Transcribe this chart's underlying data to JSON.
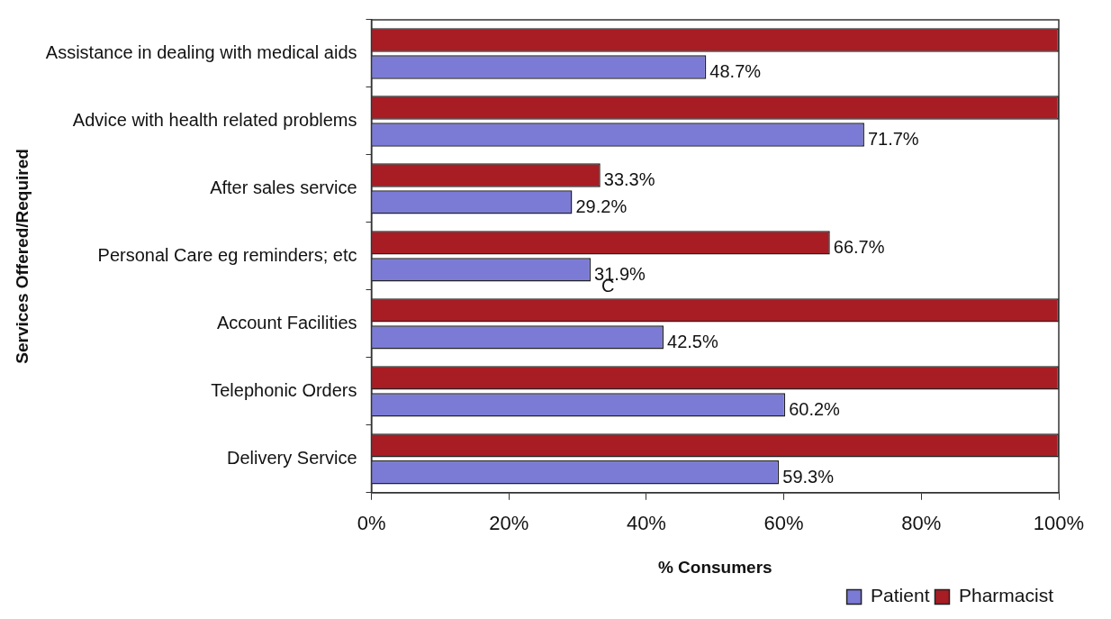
{
  "chart_data": {
    "type": "bar",
    "orientation": "horizontal",
    "xlabel": "% Consumers",
    "ylabel": "Services Offered/Required",
    "categories": [
      "Assistance in dealing with medical aids",
      "Advice with health related problems",
      "After sales service",
      "Personal Care eg reminders; etc",
      "Account Facilities",
      "Telephonic Orders",
      "Delivery Service"
    ],
    "series": [
      {
        "name": "Patient",
        "color": "#7b7bd6",
        "values": [
          48.7,
          71.7,
          29.2,
          31.9,
          42.5,
          60.2,
          59.3
        ],
        "value_labels": [
          "48.7%",
          "71.7%",
          "29.2%",
          "31.9%",
          "42.5%",
          "60.2%",
          "59.3%"
        ]
      },
      {
        "name": "Pharmacist",
        "color": "#a81c24",
        "values": [
          100,
          100,
          33.3,
          66.7,
          100,
          100,
          100
        ],
        "value_labels": [
          null,
          null,
          "33.3%",
          "66.7%",
          null,
          null,
          null
        ]
      }
    ],
    "xlim": [
      0,
      100
    ],
    "xticks": [
      {
        "value": 0,
        "label": "0%"
      },
      {
        "value": 20,
        "label": "20%"
      },
      {
        "value": 40,
        "label": "40%"
      },
      {
        "value": 60,
        "label": "60%"
      },
      {
        "value": 80,
        "label": "80%"
      },
      {
        "value": 100,
        "label": "100%"
      }
    ],
    "annotations": [
      {
        "text": "C",
        "x": 31.9,
        "y": "Personal Care eg reminders; etc"
      }
    ],
    "grid": false,
    "legend": "bottom right"
  }
}
